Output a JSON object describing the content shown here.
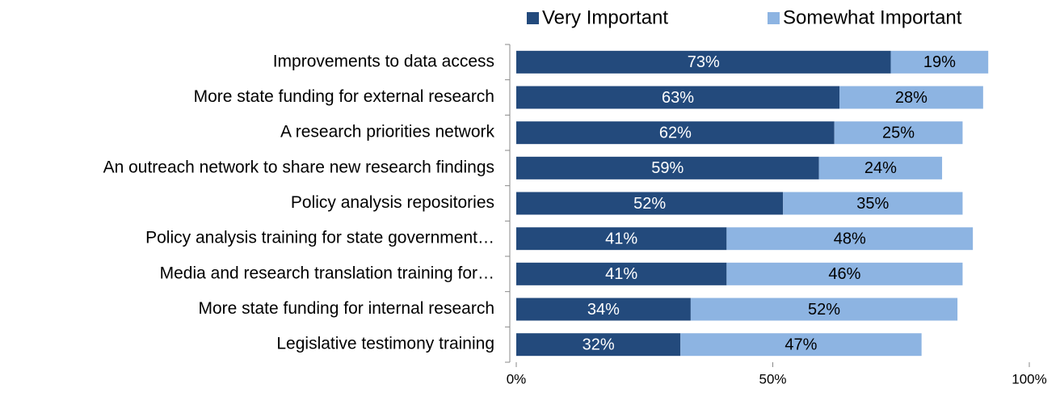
{
  "chart_data": {
    "type": "stacked-bar-horizontal",
    "categories": [
      "Improvements to data access",
      "More state funding for external research",
      "A research priorities network",
      "An outreach network to share new research findings",
      "Policy analysis repositories",
      "Policy analysis training for state government…",
      "Media and research translation training for…",
      "More state funding for internal research",
      "Legislative testimony training"
    ],
    "series": [
      {
        "name": "Very Important",
        "color": "#234a7c",
        "values": [
          73,
          63,
          62,
          59,
          52,
          41,
          41,
          34,
          32
        ],
        "value_labels": [
          "73%",
          "63%",
          "62%",
          "59%",
          "52%",
          "41%",
          "41%",
          "34%",
          "32%"
        ]
      },
      {
        "name": "Somewhat Important",
        "color": "#8db4e2",
        "values": [
          19,
          28,
          25,
          24,
          35,
          48,
          46,
          52,
          47
        ],
        "value_labels": [
          "19%",
          "28%",
          "25%",
          "24%",
          "35%",
          "48%",
          "46%",
          "52%",
          "47%"
        ]
      }
    ],
    "xlim": [
      0,
      100
    ],
    "xticks": [
      {
        "value": 0,
        "label": "0%"
      },
      {
        "value": 50,
        "label": "50%"
      },
      {
        "value": 100,
        "label": "100%"
      }
    ],
    "legend": "top"
  }
}
